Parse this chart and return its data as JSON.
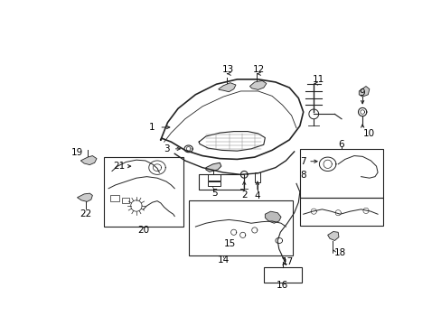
{
  "bg_color": "#ffffff",
  "fig_width": 4.89,
  "fig_height": 3.6,
  "dpi": 100,
  "line_color": "#222222",
  "label_fontsize": 7.5
}
